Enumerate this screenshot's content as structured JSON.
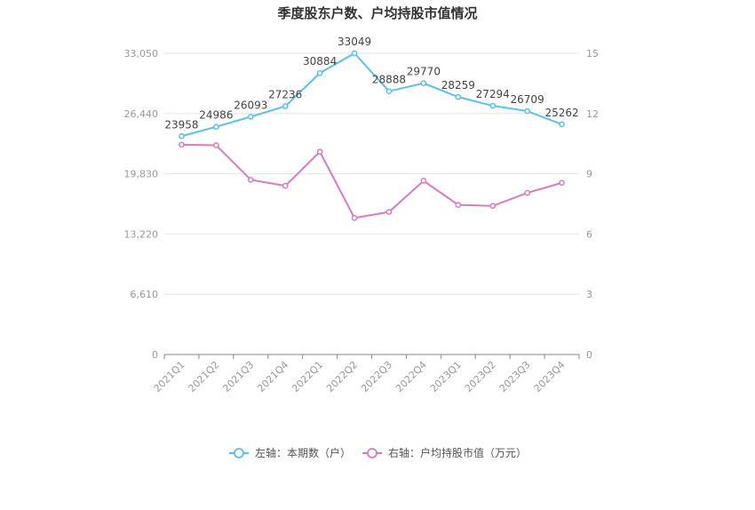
{
  "chart_data": {
    "type": "line",
    "title": "季度股东户数、户均持股市值情况",
    "categories": [
      "2021Q1",
      "2021Q2",
      "2021Q3",
      "2021Q4",
      "2022Q1",
      "2022Q2",
      "2022Q3",
      "2022Q4",
      "2023Q1",
      "2023Q2",
      "2023Q3",
      "2023Q4"
    ],
    "left_axis": {
      "ticks": [
        "0",
        "6,610",
        "13,220",
        "19,830",
        "26,440",
        "33,050"
      ],
      "min": 0,
      "max": 33050
    },
    "right_axis": {
      "ticks": [
        "0",
        "3",
        "6",
        "9",
        "12",
        "15"
      ],
      "min": 0,
      "max": 15
    },
    "series": [
      {
        "name": "左轴：本期数（户）",
        "axis": "left",
        "color": "#5bc0eb",
        "values": [
          23958,
          24986,
          26093,
          27236,
          30884,
          33049,
          28888,
          29770,
          28259,
          27294,
          26709,
          25262
        ],
        "labels": [
          "23958",
          "24986",
          "26093",
          "27236",
          "30884",
          "33049",
          "28888",
          "29770",
          "28259",
          "27294",
          "26709",
          "25262"
        ]
      },
      {
        "name": "右轴：户均持股市值（万元）",
        "axis": "right",
        "color": "#d97bbf",
        "values": [
          10.45,
          10.42,
          8.7,
          8.4,
          10.1,
          6.8,
          7.1,
          8.65,
          7.45,
          7.4,
          8.05,
          8.55
        ]
      }
    ],
    "legend_position": "bottom",
    "grid": true
  }
}
